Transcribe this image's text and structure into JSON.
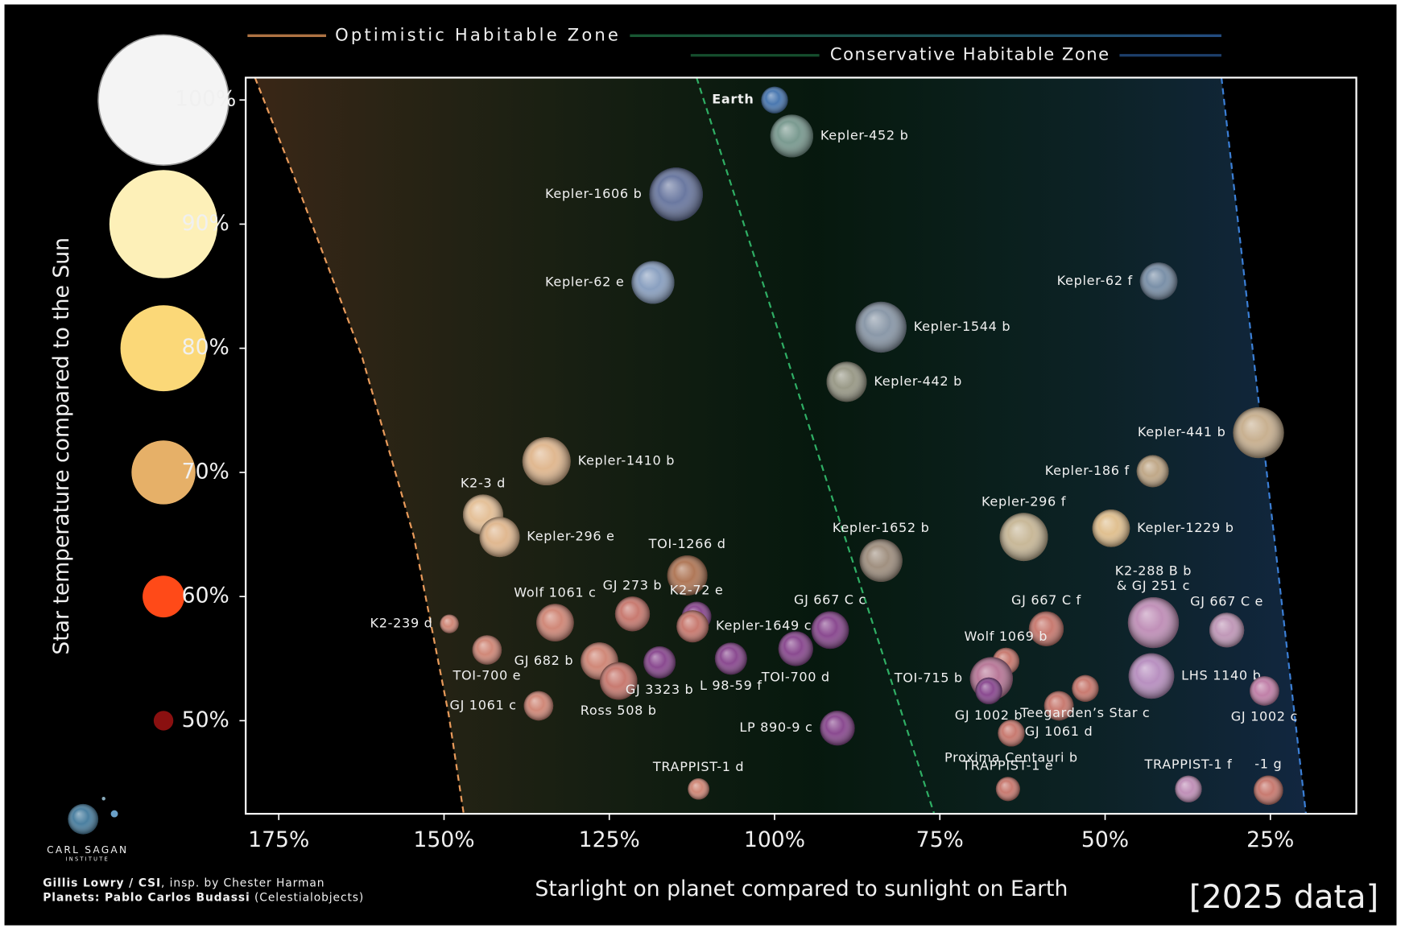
{
  "chart_data": {
    "type": "scatter",
    "x_label": "Starlight on planet compared to sunlight on Earth",
    "y_label": "Star temperature compared to the Sun",
    "xlim": [
      180,
      12
    ],
    "ylim": [
      42.5,
      101.8
    ],
    "xticks": [
      {
        "value": 175,
        "label": "175%"
      },
      {
        "value": 150,
        "label": "150%"
      },
      {
        "value": 125,
        "label": "125%"
      },
      {
        "value": 100,
        "label": "100%"
      },
      {
        "value": 75,
        "label": "75%"
      },
      {
        "value": 50,
        "label": "50%"
      },
      {
        "value": 25,
        "label": "25%"
      }
    ],
    "yticks": [
      {
        "value": 100,
        "label": "100%"
      },
      {
        "value": 90,
        "label": "90%"
      },
      {
        "value": 80,
        "label": "80%"
      },
      {
        "value": 70,
        "label": "70%"
      },
      {
        "value": 60,
        "label": "60%"
      },
      {
        "value": 50,
        "label": "50%"
      }
    ],
    "star_colors": [
      "#f4f4f4",
      "#fdf0b8",
      "#fbd878",
      "#e6b068",
      "#ff4a18",
      "#8a1010"
    ],
    "habitable_zones": [
      {
        "name": "Optimistic Habitable Zone",
        "inner": {
          "color": "#e89a5a",
          "x": [
            178.6,
            172.6,
            162.4,
            154.6,
            149.3,
            147.0
          ],
          "y": [
            101.8,
            93.7,
            79.3,
            64.9,
            50.5,
            42.4
          ]
        }
      },
      {
        "name": "Conservative Habitable Zone",
        "inner": {
          "color": "#2fae64",
          "x": [
            111.8,
            75.8
          ],
          "y": [
            101.8,
            42.4
          ]
        }
      }
    ],
    "outer_edge": {
      "color": "#3b7fd6",
      "x": [
        32.4,
        19.6
      ],
      "y": [
        101.8,
        42.4
      ]
    },
    "points": [
      {
        "name": "Earth",
        "x": 100,
        "y": 100,
        "size": 1.0,
        "color": "#4a78b0",
        "label": "left",
        "bold": true
      },
      {
        "name": "Kepler-452 b",
        "x": 97.4,
        "y": 97.1,
        "size": 1.6,
        "color": "#7a9a90",
        "label": "right"
      },
      {
        "name": "Kepler-1606 b",
        "x": 114.9,
        "y": 92.4,
        "size": 2.0,
        "color": "#6a78a0",
        "label": "left"
      },
      {
        "name": "Kepler-62 e",
        "x": 118.4,
        "y": 85.3,
        "size": 1.6,
        "color": "#8aa0c0",
        "label": "left"
      },
      {
        "name": "Kepler-62 f",
        "x": 41.9,
        "y": 85.4,
        "size": 1.4,
        "color": "#7a90a8",
        "label": "left"
      },
      {
        "name": "Kepler-1544 b",
        "x": 83.9,
        "y": 81.7,
        "size": 1.9,
        "color": "#8a98a8",
        "label": "right"
      },
      {
        "name": "Kepler-442 b",
        "x": 89.1,
        "y": 77.3,
        "size": 1.5,
        "color": "#9a9a88",
        "label": "right"
      },
      {
        "name": "Kepler-1410 b",
        "x": 134.5,
        "y": 70.9,
        "size": 1.8,
        "color": "#e0b890",
        "label": "right"
      },
      {
        "name": "Kepler-441 b",
        "x": 26.8,
        "y": 73.2,
        "size": 1.9,
        "color": "#c8b090",
        "label": "left"
      },
      {
        "name": "Kepler-186 f",
        "x": 42.8,
        "y": 70.1,
        "size": 1.2,
        "color": "#c0a888",
        "label": "left"
      },
      {
        "name": "K2-3 d",
        "x": 144.1,
        "y": 66.6,
        "size": 1.5,
        "color": "#e4c098",
        "label": "above"
      },
      {
        "name": "Kepler-296 e",
        "x": 141.6,
        "y": 64.8,
        "size": 1.5,
        "color": "#e0b890",
        "label": "right"
      },
      {
        "name": "Kepler-296 f",
        "x": 62.3,
        "y": 64.8,
        "size": 1.8,
        "color": "#c8b898",
        "label": "above"
      },
      {
        "name": "Kepler-1229 b",
        "x": 49.1,
        "y": 65.5,
        "size": 1.4,
        "color": "#e0c090",
        "label": "right"
      },
      {
        "name": "Kepler-1652 b",
        "x": 83.9,
        "y": 62.9,
        "size": 1.6,
        "color": "#a09080",
        "label": "above"
      },
      {
        "name": "TOI-1266 d",
        "x": 113.2,
        "y": 61.7,
        "size": 1.5,
        "color": "#b07858",
        "label": "above"
      },
      {
        "name": "K2-239 d",
        "x": 149.2,
        "y": 57.8,
        "size": 0.7,
        "color": "#d08878",
        "label": "left"
      },
      {
        "name": "TOI-700 e",
        "x": 143.5,
        "y": 55.7,
        "size": 1.1,
        "color": "#d08878",
        "label": "below"
      },
      {
        "name": "Wolf 1061 c",
        "x": 133.2,
        "y": 57.9,
        "size": 1.4,
        "color": "#d08878",
        "label": "above"
      },
      {
        "name": "GJ 273 b",
        "x": 121.5,
        "y": 58.6,
        "size": 1.3,
        "color": "#c87a70",
        "label": "above"
      },
      {
        "name": "GJ 682 b",
        "x": 126.5,
        "y": 54.8,
        "size": 1.4,
        "color": "#d08878",
        "label": "left"
      },
      {
        "name": "Ross 508 b",
        "x": 123.6,
        "y": 53.2,
        "size": 1.4,
        "color": "#c87a70",
        "label": "below"
      },
      {
        "name": "GJ 3323 b",
        "x": 117.4,
        "y": 54.7,
        "size": 1.2,
        "color": "#8a4a90",
        "label": "below"
      },
      {
        "name": "K2-72 e",
        "x": 111.8,
        "y": 58.4,
        "size": 1.1,
        "color": "#8a4a90",
        "label": "above"
      },
      {
        "name": "Kepler-1649 c",
        "x": 112.4,
        "y": 57.6,
        "size": 1.2,
        "color": "#c87a70",
        "label": "right"
      },
      {
        "name": "L 98-59 f",
        "x": 106.6,
        "y": 55.0,
        "size": 1.2,
        "color": "#8a4a90",
        "label": "below"
      },
      {
        "name": "GJ 667 C c",
        "x": 91.6,
        "y": 57.3,
        "size": 1.4,
        "color": "#8a4a90",
        "label": "above"
      },
      {
        "name": "TOI-700 d",
        "x": 96.8,
        "y": 55.8,
        "size": 1.3,
        "color": "#8a4a90",
        "label": "below"
      },
      {
        "name": "GJ 1061 c",
        "x": 135.7,
        "y": 51.2,
        "size": 1.1,
        "color": "#d08878",
        "label": "left"
      },
      {
        "name": "LP 890-9 c",
        "x": 90.5,
        "y": 49.4,
        "size": 1.3,
        "color": "#8a4a90",
        "label": "left"
      },
      {
        "name": "TRAPPIST-1 d",
        "x": 111.5,
        "y": 44.5,
        "size": 0.8,
        "color": "#d08878",
        "label": "above"
      },
      {
        "name": "GJ 667 C f",
        "x": 58.9,
        "y": 57.4,
        "size": 1.3,
        "color": "#c87a70",
        "label": "above"
      },
      {
        "name": "Wolf 1069 b",
        "x": 65.0,
        "y": 54.8,
        "size": 1.0,
        "color": "#c87a70",
        "label": "above"
      },
      {
        "name": "TOI-715 b",
        "x": 67.2,
        "y": 53.4,
        "size": 1.6,
        "color": "#b87898",
        "label": "left"
      },
      {
        "name": "GJ 1002 b",
        "x": 67.6,
        "y": 52.4,
        "size": 1.0,
        "color": "#8a4a90",
        "label": "below"
      },
      {
        "name": "Proxima Centauri b",
        "x": 64.2,
        "y": 49.0,
        "size": 1.0,
        "color": "#c87a70",
        "label": "below"
      },
      {
        "name": "GJ 1061 d",
        "x": 57.0,
        "y": 51.2,
        "size": 1.1,
        "color": "#c87a70",
        "label": "below"
      },
      {
        "name": "Teegarden’s Star c",
        "x": 53.0,
        "y": 52.6,
        "size": 1.0,
        "color": "#c87a70",
        "label": "below"
      },
      {
        "name": [
          "K2-288 B b",
          "& GJ 251 c"
        ],
        "x": 42.7,
        "y": 57.9,
        "size": 1.9,
        "color": "#c090b8",
        "label": "above"
      },
      {
        "name": "LHS 1140 b",
        "x": 43.0,
        "y": 53.6,
        "size": 1.7,
        "color": "#b890c0",
        "label": "right"
      },
      {
        "name": "GJ 667 C e",
        "x": 31.6,
        "y": 57.3,
        "size": 1.3,
        "color": "#c098b8",
        "label": "above"
      },
      {
        "name": "GJ 1002 c",
        "x": 25.9,
        "y": 52.4,
        "size": 1.1,
        "color": "#c080a8",
        "label": "below"
      },
      {
        "name": "TRAPPIST-1 e",
        "x": 64.7,
        "y": 44.5,
        "size": 0.9,
        "color": "#c87a70",
        "label": "above"
      },
      {
        "name": "TRAPPIST-1 f",
        "x": 37.4,
        "y": 44.5,
        "size": 1.0,
        "color": "#c090b8",
        "label": "above"
      },
      {
        "name": "-1 g",
        "x": 25.3,
        "y": 44.4,
        "size": 1.1,
        "color": "#c87a70",
        "label": "above"
      }
    ]
  },
  "logo": {
    "name": "CARL SAGAN",
    "sub": "INSTITUTE"
  },
  "credits": [
    {
      "bold": "Gillis Lowry / CSI",
      "text": ", insp. by Chester Harman"
    },
    {
      "bold": "Planets: Pablo Carlos Budassi",
      "text": " (Celestialobjects)"
    }
  ],
  "note": "[2025 data]"
}
